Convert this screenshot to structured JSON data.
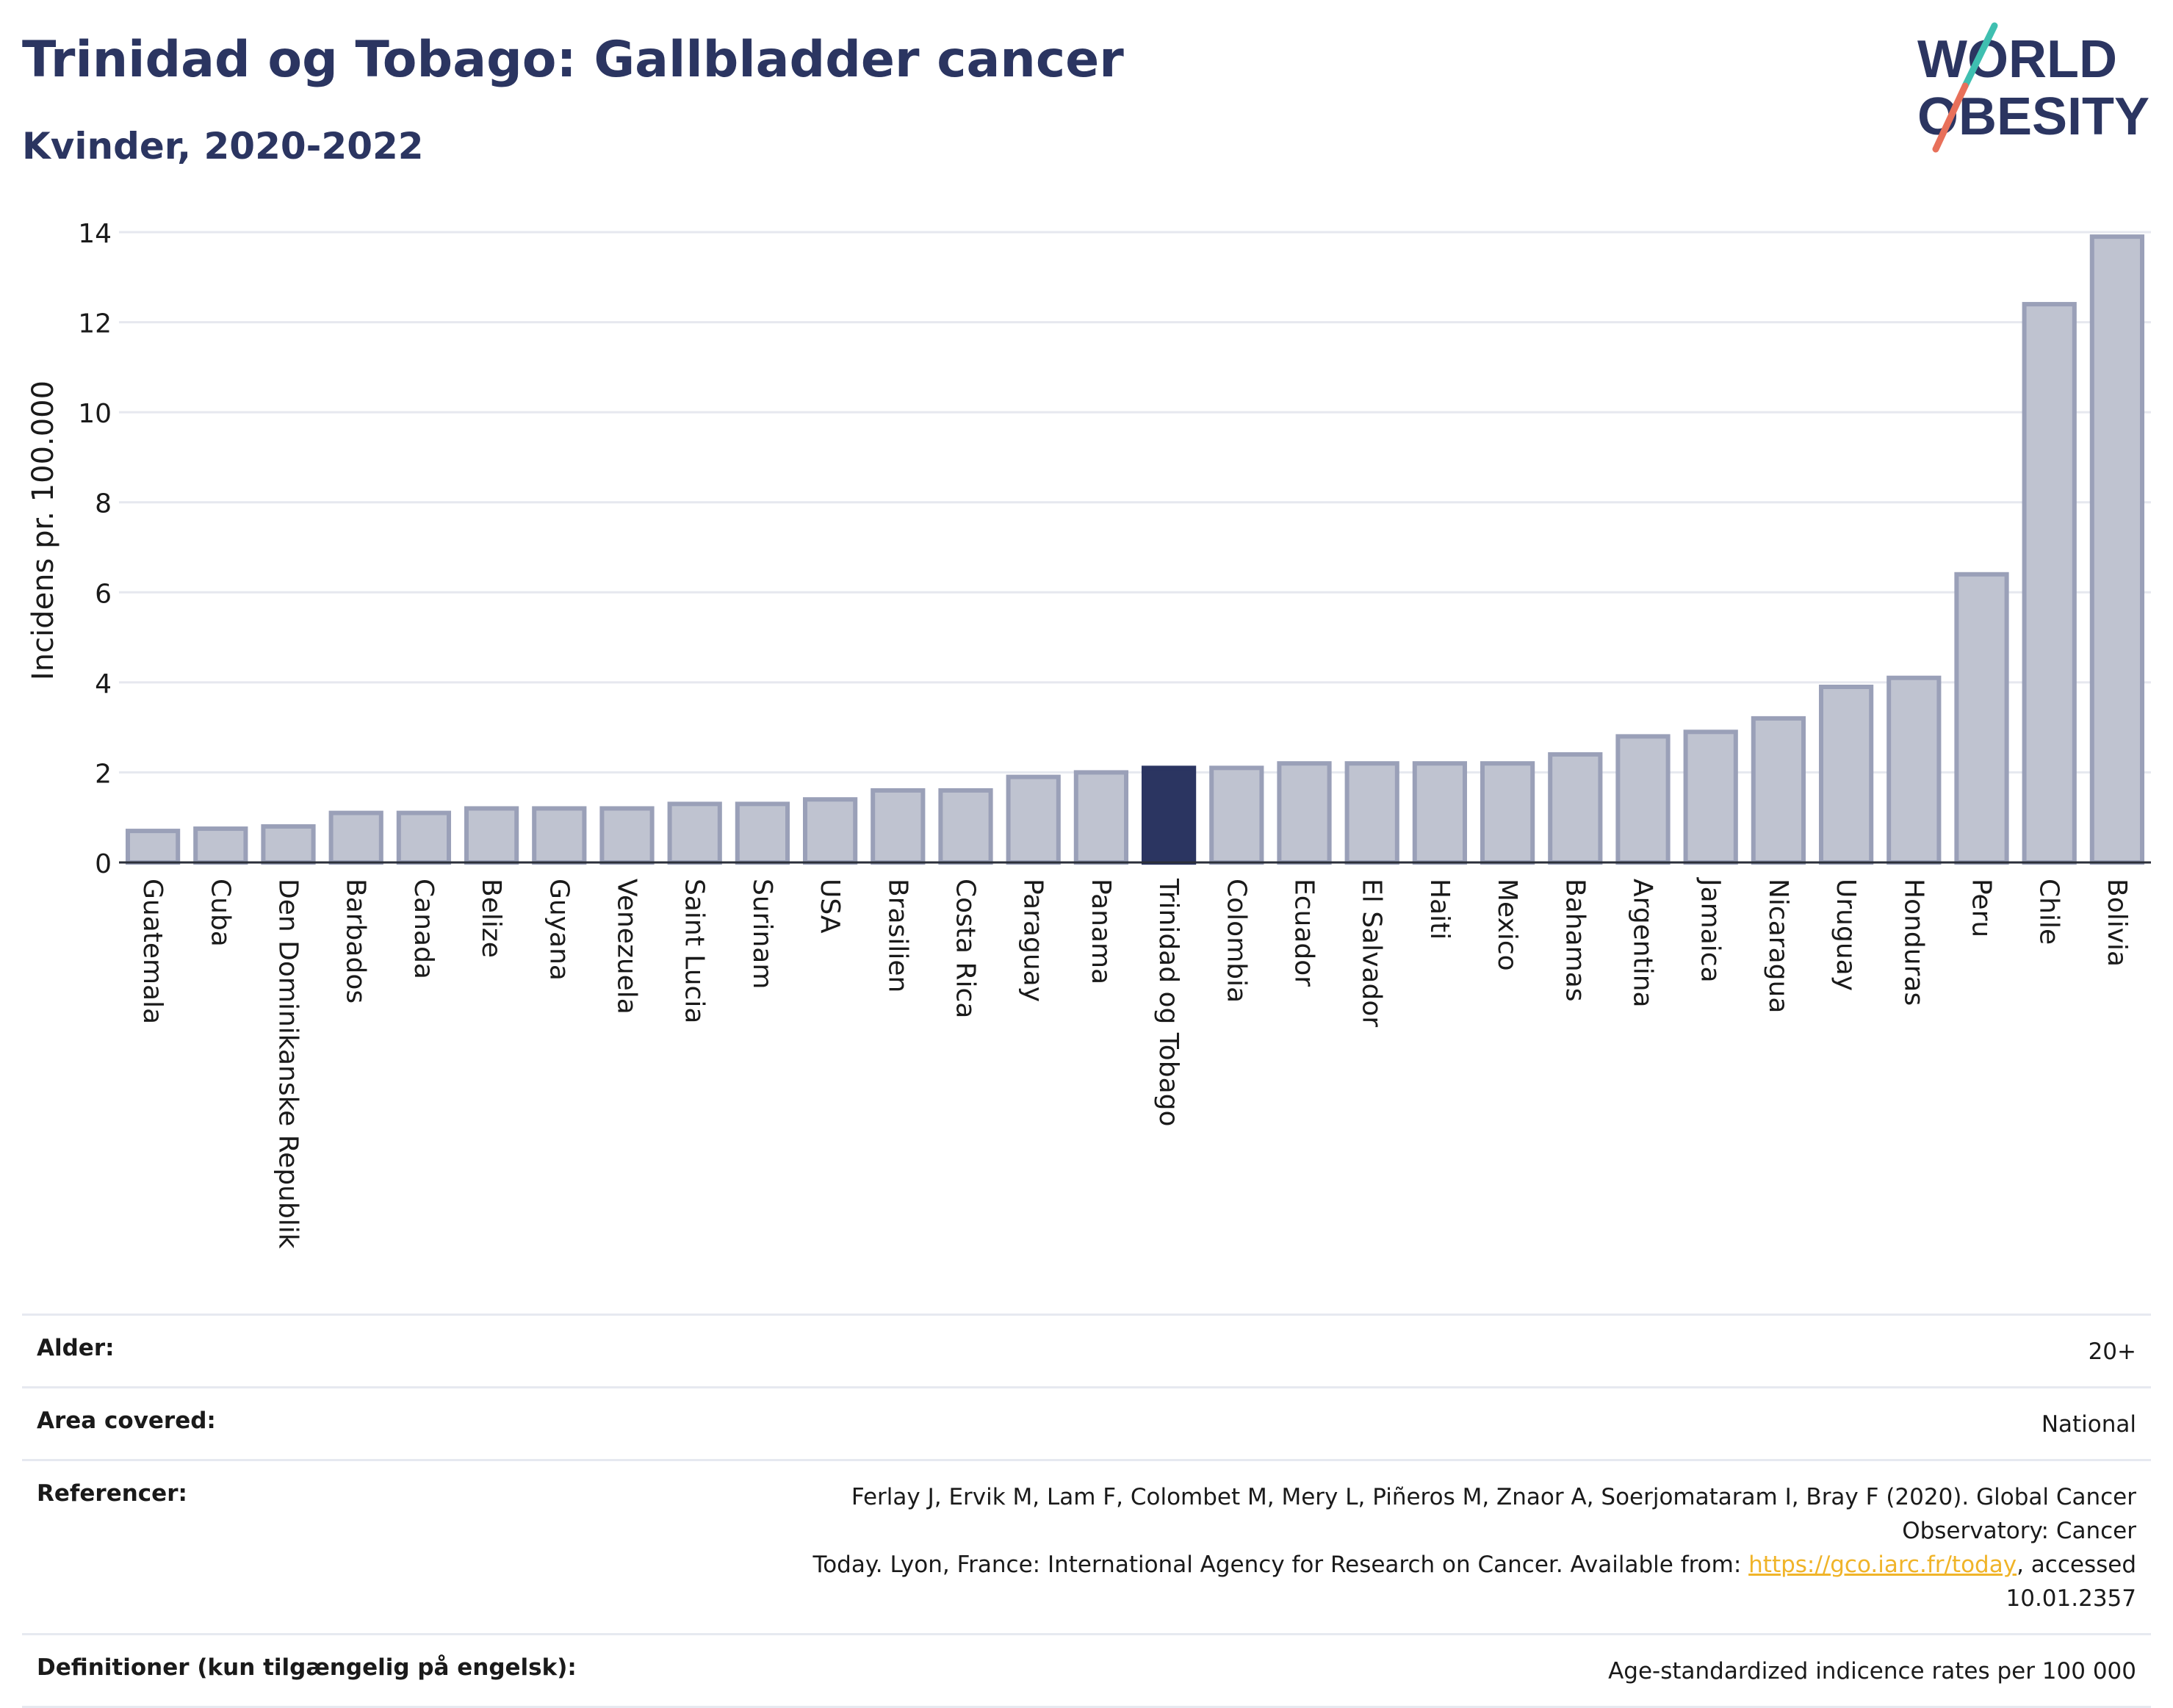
{
  "title": "Trinidad og Tobago: Gallbladder cancer",
  "subtitle": "Kvinder, 2020-2022",
  "logo": {
    "line1": "WORLD",
    "line2": "OBESITY",
    "accent_colors": [
      "#3fbfb0",
      "#e8705a"
    ]
  },
  "colors": {
    "bar": "#bfc3d0",
    "bar_stroke": "#9aa0b8",
    "highlight": "#2b3561",
    "grid": "#e6e8ef",
    "title": "#2b3561",
    "link": "#f0b429"
  },
  "chart_data": {
    "type": "bar",
    "ylabel": "Incidens pr. 100.000",
    "ylim": [
      0,
      14
    ],
    "yticks": [
      0,
      2,
      4,
      6,
      8,
      10,
      12,
      14
    ],
    "grid": true,
    "highlight": "Trinidad og Tobago",
    "categories": [
      "Guatemala",
      "Cuba",
      "Den Dominikanske Republik",
      "Barbados",
      "Canada",
      "Belize",
      "Guyana",
      "Venezuela",
      "Saint Lucia",
      "Surinam",
      "USA",
      "Brasilien",
      "Costa Rica",
      "Paraguay",
      "Panama",
      "Trinidad og Tobago",
      "Colombia",
      "Ecuador",
      "El Salvador",
      "Haiti",
      "Mexico",
      "Bahamas",
      "Argentina",
      "Jamaica",
      "Nicaragua",
      "Uruguay",
      "Honduras",
      "Peru",
      "Chile",
      "Bolivia"
    ],
    "values": [
      0.7,
      0.75,
      0.8,
      1.1,
      1.1,
      1.2,
      1.2,
      1.2,
      1.3,
      1.3,
      1.4,
      1.6,
      1.6,
      1.9,
      2.0,
      2.1,
      2.1,
      2.2,
      2.2,
      2.2,
      2.2,
      2.4,
      2.8,
      2.9,
      3.2,
      3.9,
      4.1,
      6.4,
      12.4,
      13.9
    ]
  },
  "info": {
    "rows": [
      {
        "label": "Alder:",
        "value": "20+"
      },
      {
        "label": "Area covered:",
        "value": "National"
      },
      {
        "label": "Referencer:",
        "value_line1": "Ferlay J, Ervik M, Lam F, Colombet M, Mery L, Piñeros M, Znaor A, Soerjomataram I, Bray F (2020). Global Cancer Observatory: Cancer",
        "value_line2_pre": "Today. Lyon, France: International Agency for Research on Cancer. Available from: ",
        "link_text": "https://gco.iarc.fr/today",
        "value_line2_post": ", accessed 10.01.2357"
      },
      {
        "label": "Definitioner (kun tilgængelig på engelsk):",
        "value": "Age-standardized indicence rates per 100 000"
      }
    ]
  }
}
